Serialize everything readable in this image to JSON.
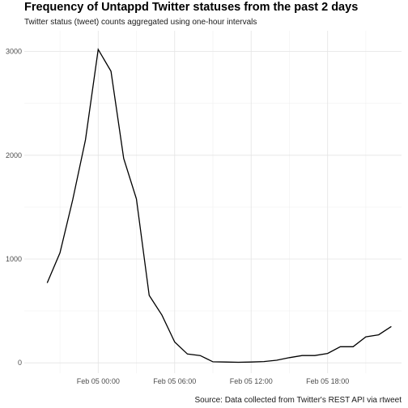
{
  "chart_data": {
    "type": "line",
    "title": "Frequency of Untappd Twitter statuses from the past 2 days",
    "subtitle": "Twitter status (tweet) counts aggregated using one-hour intervals",
    "caption": "Source: Data collected from Twitter's REST API via rtweet",
    "xlabel": "",
    "ylabel": "",
    "x_start": "Feb 04 20:00",
    "x_step_hours": 1,
    "x_ticks": [
      {
        "label": "Feb 05 00:00",
        "hour": 4
      },
      {
        "label": "Feb 05 06:00",
        "hour": 10
      },
      {
        "label": "Feb 05 12:00",
        "hour": 16
      },
      {
        "label": "Feb 05 18:00",
        "hour": 22
      }
    ],
    "xlim_hours": [
      -1.8,
      27.8
    ],
    "y_ticks": [
      0,
      1000,
      2000,
      3000
    ],
    "ylim": [
      -100,
      3200
    ],
    "grid": true,
    "line_color": "#000000",
    "series": [
      {
        "values": [
          770,
          1060,
          1570,
          2150,
          3020,
          2810,
          1970,
          1580,
          650,
          460,
          200,
          85,
          70,
          10,
          8,
          5,
          8,
          12,
          25,
          50,
          70,
          70,
          90,
          155,
          155,
          250,
          270,
          350
        ]
      }
    ]
  }
}
